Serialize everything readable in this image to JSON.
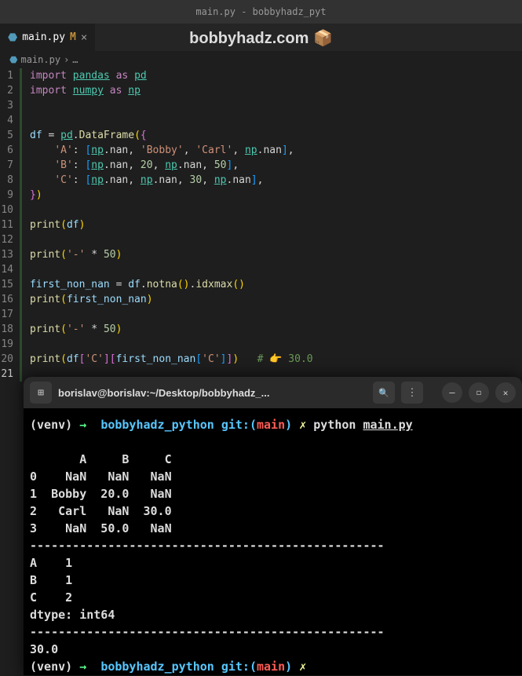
{
  "window": {
    "title": "main.py - bobbyhadz_pyt"
  },
  "watermark": {
    "text": "bobbyhadz.com 📦"
  },
  "tab": {
    "icon_label": "⬣",
    "filename": "main.py",
    "modified": "M",
    "close": "×"
  },
  "breadcrumb": {
    "icon": "⬣",
    "file": "main.py",
    "sep": "›",
    "rest": "…"
  },
  "code": {
    "lines": [
      {
        "n": "1",
        "tokens": [
          {
            "c": "tok-kw",
            "t": "import"
          },
          {
            "c": "tok-def",
            "t": " "
          },
          {
            "c": "tok-mod",
            "t": "pandas"
          },
          {
            "c": "tok-def",
            "t": " "
          },
          {
            "c": "tok-as",
            "t": "as"
          },
          {
            "c": "tok-def",
            "t": " "
          },
          {
            "c": "tok-mod",
            "t": "pd"
          }
        ]
      },
      {
        "n": "2",
        "tokens": [
          {
            "c": "tok-kw",
            "t": "import"
          },
          {
            "c": "tok-def",
            "t": " "
          },
          {
            "c": "tok-mod",
            "t": "numpy"
          },
          {
            "c": "tok-def",
            "t": " "
          },
          {
            "c": "tok-as",
            "t": "as"
          },
          {
            "c": "tok-def",
            "t": " "
          },
          {
            "c": "tok-mod",
            "t": "np"
          }
        ]
      },
      {
        "n": "3",
        "tokens": [
          {
            "c": "tok-def",
            "t": ""
          }
        ]
      },
      {
        "n": "4",
        "tokens": [
          {
            "c": "tok-def",
            "t": ""
          }
        ]
      },
      {
        "n": "5",
        "tokens": [
          {
            "c": "tok-var",
            "t": "df"
          },
          {
            "c": "tok-def",
            "t": " "
          },
          {
            "c": "tok-op",
            "t": "="
          },
          {
            "c": "tok-def",
            "t": " "
          },
          {
            "c": "tok-mod",
            "t": "pd"
          },
          {
            "c": "tok-def",
            "t": "."
          },
          {
            "c": "tok-fn",
            "t": "DataFrame"
          },
          {
            "c": "tok-br1",
            "t": "("
          },
          {
            "c": "tok-br2",
            "t": "{"
          }
        ]
      },
      {
        "n": "6",
        "tokens": [
          {
            "c": "tok-def",
            "t": "    "
          },
          {
            "c": "tok-str",
            "t": "'A'"
          },
          {
            "c": "tok-def",
            "t": ": "
          },
          {
            "c": "tok-br3",
            "t": "["
          },
          {
            "c": "tok-mod",
            "t": "np"
          },
          {
            "c": "tok-def",
            "t": ".nan, "
          },
          {
            "c": "tok-str",
            "t": "'Bobby'"
          },
          {
            "c": "tok-def",
            "t": ", "
          },
          {
            "c": "tok-str",
            "t": "'Carl'"
          },
          {
            "c": "tok-def",
            "t": ", "
          },
          {
            "c": "tok-mod",
            "t": "np"
          },
          {
            "c": "tok-def",
            "t": ".nan"
          },
          {
            "c": "tok-br3",
            "t": "]"
          },
          {
            "c": "tok-def",
            "t": ","
          }
        ]
      },
      {
        "n": "7",
        "tokens": [
          {
            "c": "tok-def",
            "t": "    "
          },
          {
            "c": "tok-str",
            "t": "'B'"
          },
          {
            "c": "tok-def",
            "t": ": "
          },
          {
            "c": "tok-br3",
            "t": "["
          },
          {
            "c": "tok-mod",
            "t": "np"
          },
          {
            "c": "tok-def",
            "t": ".nan, "
          },
          {
            "c": "tok-num",
            "t": "20"
          },
          {
            "c": "tok-def",
            "t": ", "
          },
          {
            "c": "tok-mod",
            "t": "np"
          },
          {
            "c": "tok-def",
            "t": ".nan, "
          },
          {
            "c": "tok-num",
            "t": "50"
          },
          {
            "c": "tok-br3",
            "t": "]"
          },
          {
            "c": "tok-def",
            "t": ","
          }
        ]
      },
      {
        "n": "8",
        "tokens": [
          {
            "c": "tok-def",
            "t": "    "
          },
          {
            "c": "tok-str",
            "t": "'C'"
          },
          {
            "c": "tok-def",
            "t": ": "
          },
          {
            "c": "tok-br3",
            "t": "["
          },
          {
            "c": "tok-mod",
            "t": "np"
          },
          {
            "c": "tok-def",
            "t": ".nan, "
          },
          {
            "c": "tok-mod",
            "t": "np"
          },
          {
            "c": "tok-def",
            "t": ".nan, "
          },
          {
            "c": "tok-num",
            "t": "30"
          },
          {
            "c": "tok-def",
            "t": ", "
          },
          {
            "c": "tok-mod",
            "t": "np"
          },
          {
            "c": "tok-def",
            "t": ".nan"
          },
          {
            "c": "tok-br3",
            "t": "]"
          },
          {
            "c": "tok-def",
            "t": ","
          }
        ]
      },
      {
        "n": "9",
        "tokens": [
          {
            "c": "tok-br2",
            "t": "}"
          },
          {
            "c": "tok-br1",
            "t": ")"
          }
        ]
      },
      {
        "n": "10",
        "tokens": [
          {
            "c": "tok-def",
            "t": ""
          }
        ]
      },
      {
        "n": "11",
        "tokens": [
          {
            "c": "tok-fn",
            "t": "print"
          },
          {
            "c": "tok-br1",
            "t": "("
          },
          {
            "c": "tok-var",
            "t": "df"
          },
          {
            "c": "tok-br1",
            "t": ")"
          }
        ]
      },
      {
        "n": "12",
        "tokens": [
          {
            "c": "tok-def",
            "t": ""
          }
        ]
      },
      {
        "n": "13",
        "tokens": [
          {
            "c": "tok-fn",
            "t": "print"
          },
          {
            "c": "tok-br1",
            "t": "("
          },
          {
            "c": "tok-str",
            "t": "'-'"
          },
          {
            "c": "tok-def",
            "t": " "
          },
          {
            "c": "tok-op",
            "t": "*"
          },
          {
            "c": "tok-def",
            "t": " "
          },
          {
            "c": "tok-num",
            "t": "50"
          },
          {
            "c": "tok-br1",
            "t": ")"
          }
        ]
      },
      {
        "n": "14",
        "tokens": [
          {
            "c": "tok-def",
            "t": ""
          }
        ]
      },
      {
        "n": "15",
        "tokens": [
          {
            "c": "tok-var",
            "t": "first_non_nan"
          },
          {
            "c": "tok-def",
            "t": " "
          },
          {
            "c": "tok-op",
            "t": "="
          },
          {
            "c": "tok-def",
            "t": " "
          },
          {
            "c": "tok-var",
            "t": "df"
          },
          {
            "c": "tok-def",
            "t": "."
          },
          {
            "c": "tok-fn",
            "t": "notna"
          },
          {
            "c": "tok-br1",
            "t": "()"
          },
          {
            "c": "tok-def",
            "t": "."
          },
          {
            "c": "tok-fn",
            "t": "idxmax"
          },
          {
            "c": "tok-br1",
            "t": "()"
          }
        ]
      },
      {
        "n": "16",
        "tokens": [
          {
            "c": "tok-fn",
            "t": "print"
          },
          {
            "c": "tok-br1",
            "t": "("
          },
          {
            "c": "tok-var",
            "t": "first_non_nan"
          },
          {
            "c": "tok-br1",
            "t": ")"
          }
        ]
      },
      {
        "n": "17",
        "tokens": [
          {
            "c": "tok-def",
            "t": ""
          }
        ]
      },
      {
        "n": "18",
        "tokens": [
          {
            "c": "tok-fn",
            "t": "print"
          },
          {
            "c": "tok-br1",
            "t": "("
          },
          {
            "c": "tok-str",
            "t": "'-'"
          },
          {
            "c": "tok-def",
            "t": " "
          },
          {
            "c": "tok-op",
            "t": "*"
          },
          {
            "c": "tok-def",
            "t": " "
          },
          {
            "c": "tok-num",
            "t": "50"
          },
          {
            "c": "tok-br1",
            "t": ")"
          }
        ]
      },
      {
        "n": "19",
        "tokens": [
          {
            "c": "tok-def",
            "t": ""
          }
        ]
      },
      {
        "n": "20",
        "tokens": [
          {
            "c": "tok-fn",
            "t": "print"
          },
          {
            "c": "tok-br1",
            "t": "("
          },
          {
            "c": "tok-var",
            "t": "df"
          },
          {
            "c": "tok-br2",
            "t": "["
          },
          {
            "c": "tok-str",
            "t": "'C'"
          },
          {
            "c": "tok-br2",
            "t": "]"
          },
          {
            "c": "tok-br2",
            "t": "["
          },
          {
            "c": "tok-var",
            "t": "first_non_nan"
          },
          {
            "c": "tok-br3",
            "t": "["
          },
          {
            "c": "tok-str",
            "t": "'C'"
          },
          {
            "c": "tok-br3",
            "t": "]"
          },
          {
            "c": "tok-br2",
            "t": "]"
          },
          {
            "c": "tok-br1",
            "t": ")"
          },
          {
            "c": "tok-def",
            "t": "   "
          },
          {
            "c": "tok-com",
            "t": "# 👉️ 30.0"
          }
        ]
      },
      {
        "n": "21",
        "tokens": [
          {
            "c": "tok-def",
            "t": ""
          }
        ],
        "active": true
      }
    ]
  },
  "terminal": {
    "title": "borislav@borislav:~/Desktop/bobbyhadz_...",
    "new_tab_icon": "⊞",
    "search_icon": "🔍",
    "menu_icon": "⋮",
    "min_icon": "—",
    "max_icon": "◻",
    "close_icon": "✕",
    "lines": [
      [
        {
          "c": "",
          "t": "(venv) "
        },
        {
          "c": "t-green",
          "t": "→  "
        },
        {
          "c": "t-cyan",
          "t": "bobbyhadz_python"
        },
        {
          "c": "",
          "t": " "
        },
        {
          "c": "t-cyan",
          "t": "git:("
        },
        {
          "c": "t-red",
          "t": "main"
        },
        {
          "c": "t-cyan",
          "t": ")"
        },
        {
          "c": "",
          "t": " "
        },
        {
          "c": "t-yellow",
          "t": "✗"
        },
        {
          "c": "",
          "t": " python "
        },
        {
          "c": "t-underline",
          "t": "main.py"
        }
      ],
      [
        {
          "c": "",
          "t": ""
        }
      ],
      [
        {
          "c": "",
          "t": "       A     B     C"
        }
      ],
      [
        {
          "c": "",
          "t": "0    NaN   NaN   NaN"
        }
      ],
      [
        {
          "c": "",
          "t": "1  Bobby  20.0   NaN"
        }
      ],
      [
        {
          "c": "",
          "t": "2   Carl   NaN  30.0"
        }
      ],
      [
        {
          "c": "",
          "t": "3    NaN  50.0   NaN"
        }
      ],
      [
        {
          "c": "",
          "t": "--------------------------------------------------"
        }
      ],
      [
        {
          "c": "",
          "t": "A    1"
        }
      ],
      [
        {
          "c": "",
          "t": "B    1"
        }
      ],
      [
        {
          "c": "",
          "t": "C    2"
        }
      ],
      [
        {
          "c": "",
          "t": "dtype: int64"
        }
      ],
      [
        {
          "c": "",
          "t": "--------------------------------------------------"
        }
      ],
      [
        {
          "c": "",
          "t": "30.0"
        }
      ],
      [
        {
          "c": "",
          "t": "(venv) "
        },
        {
          "c": "t-green",
          "t": "→  "
        },
        {
          "c": "t-cyan",
          "t": "bobbyhadz_python"
        },
        {
          "c": "",
          "t": " "
        },
        {
          "c": "t-cyan",
          "t": "git:("
        },
        {
          "c": "t-red",
          "t": "main"
        },
        {
          "c": "t-cyan",
          "t": ")"
        },
        {
          "c": "",
          "t": " "
        },
        {
          "c": "t-yellow",
          "t": "✗"
        }
      ]
    ]
  }
}
